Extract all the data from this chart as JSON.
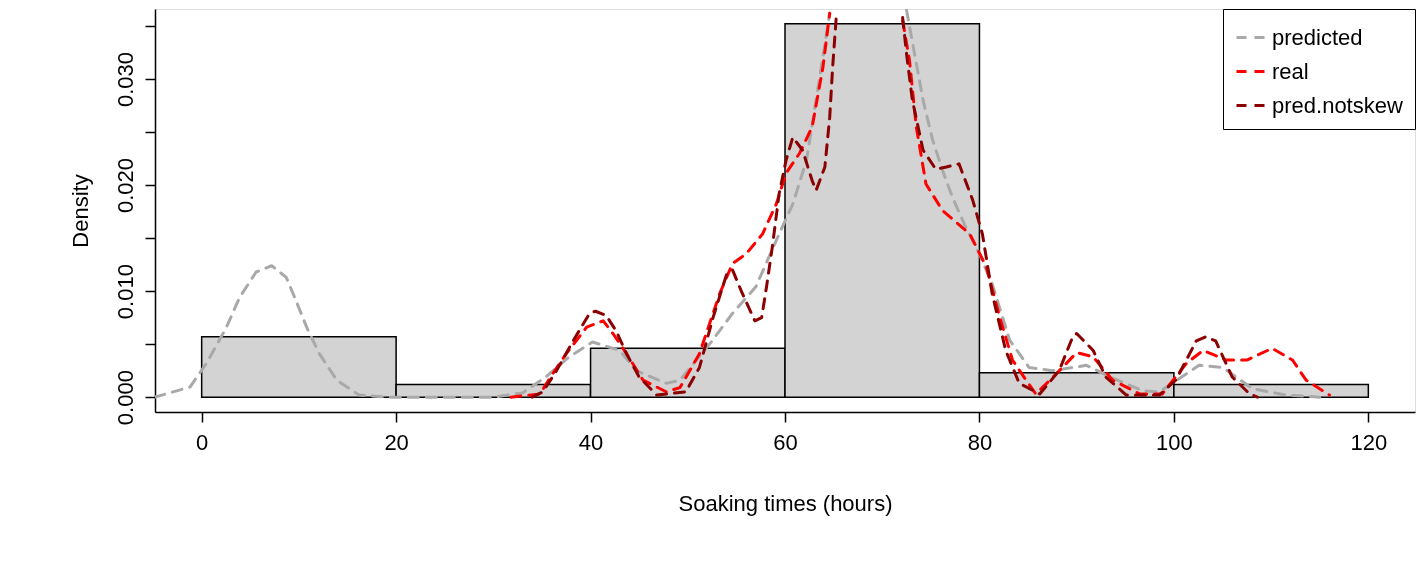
{
  "chart_data": {
    "type": "histogram",
    "xlabel": "Soaking times (hours)",
    "ylabel": "Density",
    "bins": [
      0,
      20,
      40,
      60,
      80,
      100,
      120
    ],
    "values": [
      0.0057,
      0.0012,
      0.0046,
      0.0352,
      0.0023,
      0.0012
    ],
    "color": "#d3d3d3",
    "xlim": [
      -4.8,
      124.8
    ],
    "ylim": [
      -0.0014,
      0.0366
    ],
    "xticks": [
      0,
      20,
      40,
      60,
      80,
      100,
      120
    ],
    "yticks": [
      {
        "value": 0,
        "label": "0.000"
      },
      {
        "value": 0.005,
        "label": null
      },
      {
        "value": 0.01,
        "label": "0.010"
      },
      {
        "value": 0.015,
        "label": null
      },
      {
        "value": 0.02,
        "label": "0.020"
      },
      {
        "value": 0.025,
        "label": null
      },
      {
        "value": 0.03,
        "label": "0.030"
      },
      {
        "value": 0.035,
        "label": null
      }
    ],
    "legend": "top right",
    "line_style": "dashed",
    "grid": false,
    "series": [
      {
        "name": "predicted",
        "type": "line",
        "color": "#a9a9a9",
        "x": [
          -4.8,
          -1.2,
          0.5,
          2.5,
          3.9,
          5.6,
          7.2,
          8.7,
          9.7,
          10.8,
          12.1,
          13.9,
          16.2,
          19.3,
          30,
          33,
          35.4,
          37.8,
          40.2,
          43.0,
          44.7,
          47.8,
          49.2,
          52.5,
          54.6,
          57.0,
          59.4,
          60.8,
          62.2,
          63.4,
          64.6,
          68,
          72.5,
          74.2,
          75.2,
          76.2,
          77.2,
          78.6,
          80.0,
          81.3,
          83.1,
          85.1,
          87.5,
          91.0,
          93.7,
          96.8,
          98.5,
          102.6,
          105,
          108.1,
          111.5,
          115
        ],
        "values": [
          0,
          0.00095,
          0.0032,
          0.0065,
          0.0094,
          0.0118,
          0.0124,
          0.0113,
          0.0091,
          0.0066,
          0.0041,
          0.0016,
          0.0002,
          0,
          0,
          0.0004,
          0.0019,
          0.0038,
          0.0052,
          0.0044,
          0.0025,
          0.0013,
          0.0016,
          0.0053,
          0.0079,
          0.0104,
          0.0154,
          0.0182,
          0.0223,
          0.0292,
          0.0362,
          null,
          0.0365,
          0.028,
          0.0242,
          0.0214,
          0.0189,
          0.016,
          0.0135,
          0.0107,
          0.0054,
          0.0028,
          0.0025,
          0.003,
          0.0018,
          0.0006,
          0.0005,
          0.003,
          0.0028,
          0.0008,
          0.0002,
          0
        ]
      },
      {
        "name": "real",
        "type": "line",
        "color": "#ff0000",
        "x": [
          31.8,
          34.8,
          36.1,
          37.5,
          39.6,
          41.3,
          42.3,
          43.7,
          45.4,
          47.8,
          49.2,
          51.2,
          53.3,
          54.6,
          56.0,
          57.7,
          59.1,
          60.1,
          61.5,
          62.8,
          63.9,
          64.6,
          68,
          72.1,
          72.8,
          73.5,
          74.5,
          76.2,
          79.0,
          80.7,
          82.1,
          83.4,
          84.8,
          85.8,
          87.9,
          90,
          91.7,
          93.7,
          96.5,
          98.8,
          101.3,
          103,
          105.4,
          107.5,
          110.1,
          112.2,
          113.6,
          116
        ],
        "values": [
          0,
          0.0003,
          0.0022,
          0.0041,
          0.0066,
          0.0072,
          0.006,
          0.0041,
          0.0016,
          0.0005,
          0.0009,
          0.0041,
          0.0098,
          0.0126,
          0.0135,
          0.0154,
          0.0182,
          0.0211,
          0.023,
          0.0255,
          0.0311,
          0.0362,
          null,
          0.0355,
          0.0318,
          0.0255,
          0.0201,
          0.0176,
          0.0154,
          0.0123,
          0.0075,
          0.0035,
          0.0016,
          0.0003,
          0.0022,
          0.0042,
          0.0038,
          0.0016,
          0.0003,
          0.0003,
          0.0032,
          0.0044,
          0.0035,
          0.0035,
          0.0046,
          0.0035,
          0.0016,
          0.0002
        ]
      },
      {
        "name": "pred.notskew",
        "type": "line",
        "color": "#8b0000",
        "x": [
          34,
          35.1,
          36.5,
          38.2,
          39.9,
          40.5,
          41.6,
          42.6,
          43.7,
          45,
          46.8,
          49.8,
          51.2,
          52.6,
          54,
          54.6,
          55.6,
          56.9,
          57.6,
          58.1,
          58.7,
          59.4,
          60.1,
          60.8,
          61.8,
          62.8,
          63.2,
          64.1,
          64.6,
          64.9,
          65.3,
          68,
          72.1,
          72.5,
          73.1,
          74.2,
          75.5,
          76.6,
          77.9,
          79.3,
          80.3,
          81.3,
          82.7,
          84.1,
          86.2,
          88.2,
          89.6,
          90,
          91.7,
          93,
          95.1,
          98.5,
          100.2,
          102.3,
          103.3,
          104.3,
          106,
          107.8,
          108.6
        ],
        "values": [
          0,
          0.0005,
          0.0025,
          0.0053,
          0.0079,
          0.0081,
          0.0077,
          0.0063,
          0.0041,
          0.0019,
          0.0002,
          0.0005,
          0.0028,
          0.0075,
          0.0116,
          0.012,
          0.0098,
          0.0072,
          0.0075,
          0.0104,
          0.0142,
          0.0192,
          0.0223,
          0.0245,
          0.0233,
          0.0204,
          0.0195,
          0.0217,
          0.0264,
          0.0311,
          0.0362,
          null,
          0.0358,
          0.0324,
          0.028,
          0.0233,
          0.0215,
          0.0217,
          0.022,
          0.0186,
          0.0154,
          0.0098,
          0.0044,
          0.0013,
          0.0003,
          0.0025,
          0.0057,
          0.006,
          0.0044,
          0.0019,
          0.0002,
          0.0002,
          0.0016,
          0.0053,
          0.0057,
          0.0053,
          0.0019,
          0.0003,
          0
        ]
      }
    ]
  }
}
